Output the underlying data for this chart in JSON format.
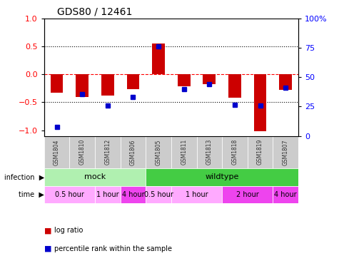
{
  "title": "GDS80 / 12461",
  "samples": [
    "GSM1804",
    "GSM1810",
    "GSM1812",
    "GSM1806",
    "GSM1805",
    "GSM1811",
    "GSM1813",
    "GSM1818",
    "GSM1819",
    "GSM1807"
  ],
  "log_ratio": [
    -0.33,
    -0.4,
    -0.38,
    -0.27,
    0.55,
    -0.22,
    -0.18,
    -0.42,
    -1.02,
    -0.28
  ],
  "percentile": [
    3,
    32,
    22,
    30,
    75,
    37,
    41,
    23,
    22,
    38
  ],
  "bar_color": "#cc0000",
  "dot_color": "#0000cc",
  "infection_groups": [
    {
      "label": "mock",
      "start": 0,
      "end": 4,
      "color": "#b0f0b0"
    },
    {
      "label": "wildtype",
      "start": 4,
      "end": 10,
      "color": "#44cc44"
    }
  ],
  "time_groups": [
    {
      "label": "0.5 hour",
      "start": 0,
      "end": 2,
      "color": "#ffaaff"
    },
    {
      "label": "1 hour",
      "start": 2,
      "end": 3,
      "color": "#ffaaff"
    },
    {
      "label": "4 hour",
      "start": 3,
      "end": 4,
      "color": "#ee44ee"
    },
    {
      "label": "0.5 hour",
      "start": 4,
      "end": 5,
      "color": "#ffaaff"
    },
    {
      "label": "1 hour",
      "start": 5,
      "end": 7,
      "color": "#ffaaff"
    },
    {
      "label": "2 hour",
      "start": 7,
      "end": 9,
      "color": "#ee44ee"
    },
    {
      "label": "4 hour",
      "start": 9,
      "end": 10,
      "color": "#ee44ee"
    }
  ],
  "ylim": [
    -1.1,
    1.0
  ],
  "yticks_left": [
    -1,
    -0.5,
    0,
    0.5,
    1
  ],
  "yticks_right": [
    0,
    25,
    50,
    75,
    100
  ],
  "y_right_labels": [
    "0",
    "25",
    "50",
    "75",
    "100%"
  ],
  "hlines": [
    -0.5,
    0,
    0.5
  ],
  "hline_styles": [
    "dotted",
    "dashed",
    "dotted"
  ],
  "hline_colors": [
    "black",
    "red",
    "black"
  ],
  "xlabel": "",
  "legend_red": "log ratio",
  "legend_blue": "percentile rank within the sample",
  "infection_label": "infection",
  "time_label": "time",
  "sample_row_color": "#cccccc",
  "sample_text_color": "#333333"
}
